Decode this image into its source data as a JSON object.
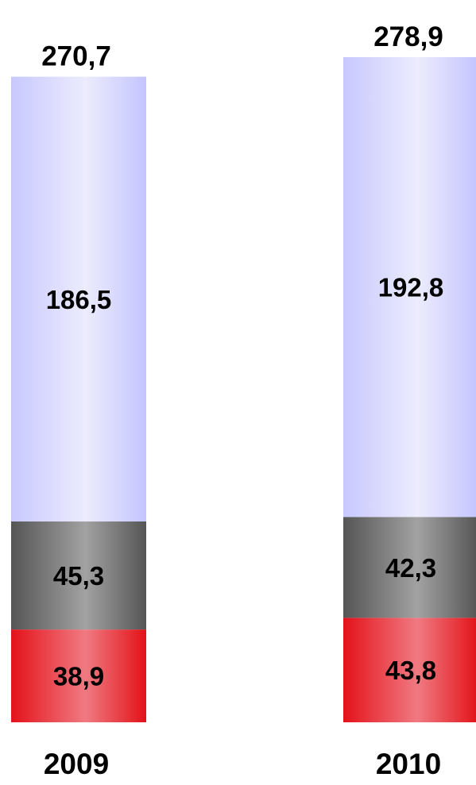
{
  "chart_data": {
    "type": "bar",
    "stacked": true,
    "categories": [
      "2009",
      "2010"
    ],
    "series": [
      {
        "values": [
          38.9,
          43.8
        ],
        "labels": [
          "38,9",
          "43,8"
        ],
        "color": "#e8161e"
      },
      {
        "values": [
          45.3,
          42.3
        ],
        "labels": [
          "45,3",
          "42,3"
        ],
        "color": "#5a5a5a"
      },
      {
        "values": [
          186.5,
          192.8
        ],
        "labels": [
          "186,5",
          "192,8"
        ],
        "color": "#ccccff"
      }
    ],
    "totals": [
      270.7,
      278.9
    ],
    "total_labels": [
      "270,7",
      "278,9"
    ],
    "title": "",
    "xlabel": "",
    "ylabel": "",
    "ylim": [
      0,
      278.9
    ],
    "grid": false,
    "legend": "none"
  }
}
